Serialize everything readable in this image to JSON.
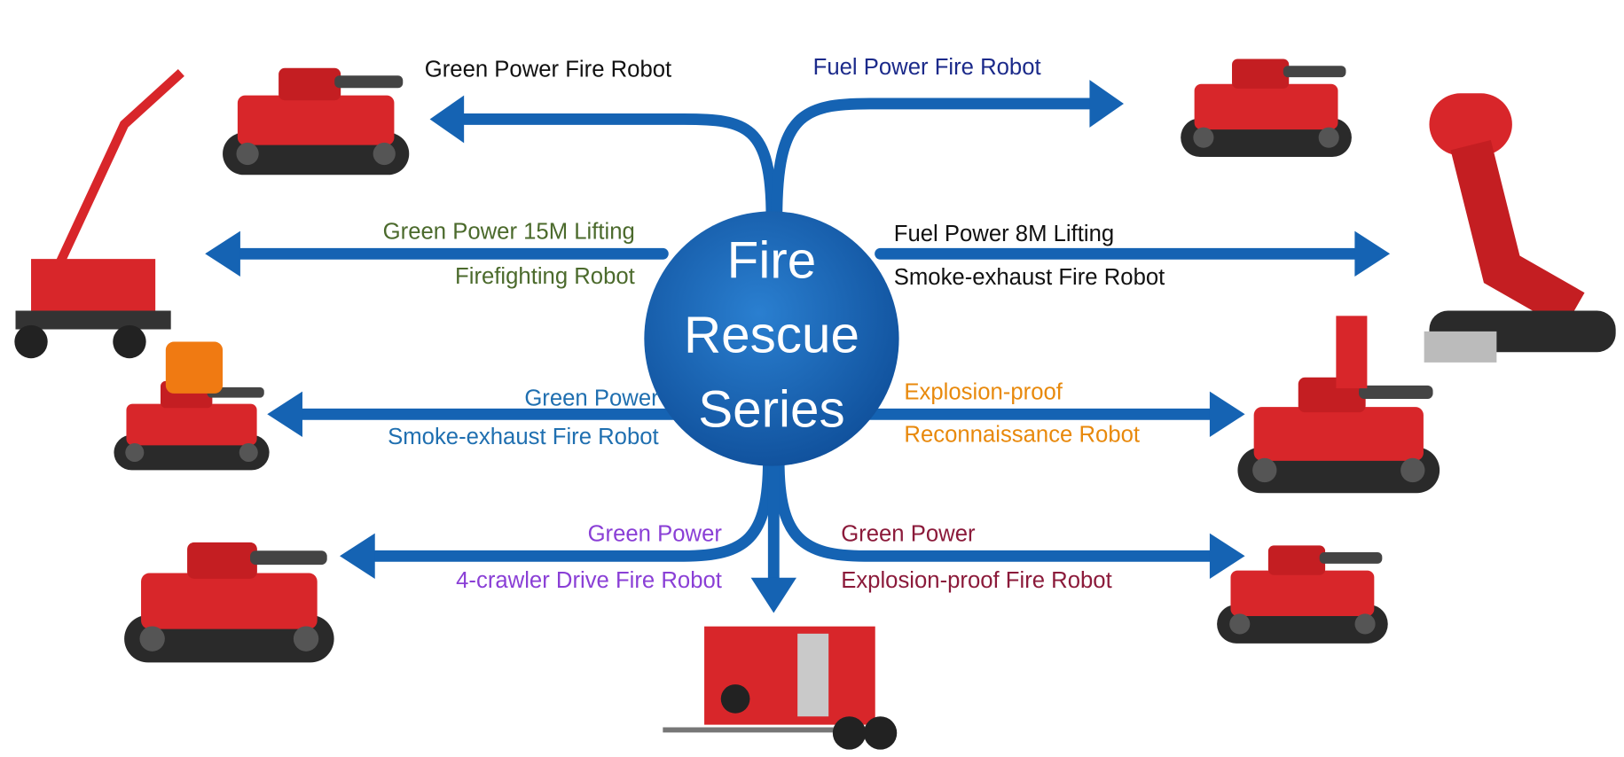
{
  "center": {
    "lines": [
      "Fire",
      "Rescue",
      "Series"
    ]
  },
  "nodes": [
    {
      "lines": [
        "Green Power Fire Robot"
      ],
      "color": "#111111"
    },
    {
      "lines": [
        "Fuel Power Fire Robot"
      ],
      "color": "#1b2a8a"
    },
    {
      "lines": [
        "Green Power 15M Lifting",
        "Firefighting Robot"
      ],
      "color": "#4b6a2c"
    },
    {
      "lines": [
        "Fuel Power 8M Lifting",
        "Smoke-exhaust Fire Robot"
      ],
      "color": "#111111"
    },
    {
      "lines": [
        "Green Power",
        "Smoke-exhaust Fire Robot"
      ],
      "color": "#1f6fb0"
    },
    {
      "lines": [
        "Explosion-proof",
        "Reconnaissance Robot"
      ],
      "color": "#e8890c"
    },
    {
      "lines": [
        "Green Power",
        "4-crawler Drive Fire Robot"
      ],
      "color": "#8a3fd6"
    },
    {
      "lines": [
        "Green Power",
        "Explosion-proof Fire Robot"
      ],
      "color": "#8b1a3a"
    }
  ]
}
